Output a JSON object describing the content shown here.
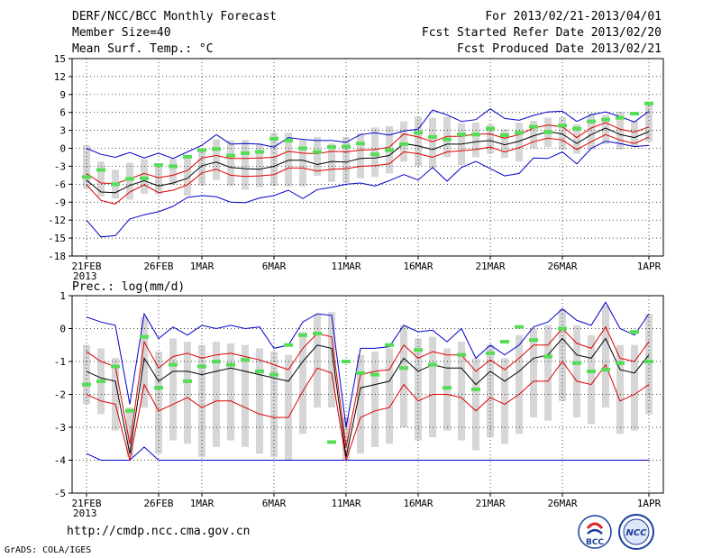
{
  "header": {
    "title": "DERF/NCC/BCC Monthly Forecast",
    "member_size": "Member Size=40",
    "variable": "Mean Surf. Temp.: °C",
    "period": "For 2013/02/21-2013/04/01",
    "fcst_started": "Fcst Started Refer Date 2013/02/20",
    "fcst_produced": "Fcst Produced Date 2013/02/21"
  },
  "footer": {
    "url": "http://cmdp.ncc.cma.gov.cn",
    "credit": "GrADS: COLA/IGES",
    "logo_left_text": "BCC",
    "logo_right_text": "NCC"
  },
  "colors": {
    "max_min": "#0000cc",
    "spread": "#dd0000",
    "mean": "#000000",
    "marker": "#55dd55",
    "box": "#d6d6d6"
  },
  "chart_data": [
    {
      "type": "box-ensemble",
      "title": "Mean Surf. Temp.: °C",
      "xlabel": "",
      "ylabel": "",
      "ylim": [
        -18,
        15
      ],
      "yticks": [
        "15",
        "12",
        "9",
        "6",
        "3",
        "0",
        "-3",
        "-6",
        "-9",
        "-12",
        "-15",
        "-18"
      ],
      "xticks": [
        "21FEB",
        "26FEB",
        "1MAR",
        "6MAR",
        "11MAR",
        "16MAR",
        "21MAR",
        "26MAR",
        "1APR"
      ],
      "xtick_day_index": [
        0,
        5,
        8,
        13,
        18,
        23,
        28,
        33,
        39
      ],
      "year_label": "2013",
      "days": 40,
      "series": {
        "max": [
          0.0,
          -1.0,
          -1.5,
          -0.7,
          -1.6,
          -0.8,
          -1.7,
          -0.6,
          0.5,
          2.3,
          0.7,
          0.8,
          0.7,
          0.2,
          1.8,
          1.5,
          1.3,
          1.3,
          1.0,
          2.3,
          2.6,
          2.2,
          2.9,
          3.2,
          6.4,
          5.6,
          4.5,
          4.8,
          6.6,
          5.0,
          4.7,
          5.5,
          6.1,
          6.2,
          4.5,
          5.6,
          6.1,
          5.3,
          4.4,
          6.2
        ],
        "p75": [
          -4.2,
          -5.8,
          -5.9,
          -5.1,
          -4.2,
          -4.9,
          -4.5,
          -3.7,
          -1.6,
          -1.2,
          -1.7,
          -1.7,
          -1.6,
          -1.5,
          -0.5,
          -0.8,
          -0.9,
          -0.5,
          -0.6,
          -0.3,
          -0.2,
          0.2,
          2.4,
          1.9,
          1.1,
          2.0,
          2.0,
          2.4,
          2.4,
          1.7,
          2.3,
          3.4,
          3.9,
          3.6,
          1.8,
          3.4,
          4.3,
          3.2,
          2.7,
          3.6
        ],
        "mean": [
          -5.3,
          -7.3,
          -7.4,
          -6.2,
          -5.4,
          -6.3,
          -5.8,
          -5.0,
          -2.9,
          -2.3,
          -3.2,
          -3.4,
          -3.5,
          -3.0,
          -2.0,
          -2.0,
          -2.7,
          -2.2,
          -2.3,
          -1.7,
          -1.6,
          -1.2,
          0.8,
          0.4,
          -0.2,
          0.7,
          0.7,
          1.1,
          1.3,
          0.6,
          1.2,
          2.1,
          2.8,
          2.4,
          0.8,
          2.3,
          3.4,
          2.3,
          1.8,
          2.8
        ],
        "p25": [
          -6.1,
          -8.7,
          -9.3,
          -7.3,
          -6.1,
          -7.4,
          -7.0,
          -6.1,
          -4.1,
          -3.5,
          -4.5,
          -4.7,
          -4.6,
          -4.4,
          -3.3,
          -3.3,
          -3.8,
          -3.5,
          -3.4,
          -3.0,
          -2.9,
          -2.6,
          -0.6,
          -0.9,
          -1.5,
          -0.6,
          -0.4,
          -0.2,
          0.2,
          -0.6,
          0.1,
          1.1,
          1.7,
          1.4,
          -0.2,
          1.1,
          2.3,
          1.4,
          0.8,
          1.9
        ],
        "min": [
          -12.0,
          -14.8,
          -14.6,
          -11.8,
          -11.1,
          -10.6,
          -9.7,
          -8.2,
          -7.9,
          -8.1,
          -9.0,
          -9.1,
          -8.3,
          -7.9,
          -7.0,
          -8.4,
          -6.9,
          -6.5,
          -6.0,
          -5.8,
          -6.3,
          -5.4,
          -4.4,
          -5.3,
          -3.2,
          -5.5,
          -3.2,
          -2.2,
          -3.4,
          -4.6,
          -4.2,
          -1.6,
          -1.7,
          -0.6,
          -2.6,
          0.0,
          1.2,
          0.8,
          0.3,
          0.5
        ],
        "obs": [
          -4.8,
          -3.6,
          -6.0,
          -5.1,
          -5.0,
          -2.8,
          -3.0,
          -1.4,
          -0.3,
          -0.1,
          -1.2,
          -0.8,
          -0.6,
          1.6,
          1.3,
          0.0,
          -0.6,
          0.2,
          0.3,
          0.8,
          -1.0,
          -0.3,
          0.7,
          2.6,
          1.9,
          1.5,
          2.3,
          2.3,
          3.3,
          2.2,
          2.6,
          3.6,
          2.7,
          3.8,
          3.3,
          4.5,
          4.8,
          5.1,
          5.8,
          7.5
        ]
      },
      "box_top": [
        0.5,
        -2.2,
        -3.6,
        -2.4,
        -1.8,
        -3.0,
        -1.8,
        -1.5,
        -0.4,
        1.5,
        1.3,
        1.4,
        0.8,
        2.6,
        2.6,
        1.4,
        1.9,
        0.8,
        1.9,
        2.5,
        3.5,
        3.7,
        4.5,
        5.3,
        5.1,
        5.3,
        4.2,
        4.3,
        4.0,
        3.2,
        4.3,
        4.6,
        5.1,
        5.2,
        4.0,
        5.9,
        5.6,
        6.1,
        4.6,
        7.5
      ],
      "box_bottom": [
        -6.7,
        -8.1,
        -8.4,
        -8.6,
        -7.6,
        -7.7,
        -6.1,
        -7.9,
        -6.2,
        -5.3,
        -6.3,
        -6.9,
        -6.5,
        -6.3,
        -6.4,
        -6.4,
        -4.6,
        -5.6,
        -5.8,
        -5.0,
        -4.8,
        -4.2,
        -2.2,
        -3.0,
        -3.3,
        -1.5,
        -2.8,
        -1.5,
        -0.9,
        -1.6,
        -2.2,
        0.0,
        0.2,
        -0.2,
        -0.9,
        -0.2,
        0.7,
        -0.2,
        0.2,
        1.1
      ]
    },
    {
      "type": "box-ensemble",
      "title": "Prec.: log(mm/d)",
      "xlabel": "",
      "ylabel": "",
      "ylim": [
        -5,
        1
      ],
      "yticks": [
        "1",
        "0",
        "-1",
        "-2",
        "-3",
        "-4",
        "-5"
      ],
      "xticks": [
        "21FEB",
        "26FEB",
        "1MAR",
        "6MAR",
        "11MAR",
        "16MAR",
        "21MAR",
        "26MAR",
        "1APR"
      ],
      "xtick_day_index": [
        0,
        5,
        8,
        13,
        18,
        23,
        28,
        33,
        39
      ],
      "year_label": "2013",
      "days": 40,
      "series": {
        "max": [
          0.35,
          0.2,
          0.1,
          -2.3,
          0.45,
          -0.3,
          0.05,
          -0.2,
          0.1,
          0.0,
          0.1,
          0.0,
          0.05,
          -0.6,
          -0.5,
          0.2,
          0.45,
          0.4,
          -3.0,
          -0.6,
          -0.6,
          -0.55,
          0.1,
          -0.1,
          -0.05,
          -0.4,
          0.0,
          -0.9,
          -0.5,
          -0.8,
          -0.5,
          0.05,
          0.2,
          0.6,
          0.25,
          0.1,
          0.8,
          0.0,
          -0.2,
          0.45
        ],
        "p75": [
          -0.7,
          -1.0,
          -1.15,
          -3.5,
          -0.4,
          -1.2,
          -0.85,
          -0.75,
          -0.9,
          -0.8,
          -0.75,
          -0.85,
          -0.95,
          -1.1,
          -1.25,
          -0.6,
          -0.15,
          -0.25,
          -3.6,
          -1.4,
          -1.3,
          -1.25,
          -0.5,
          -0.9,
          -0.7,
          -0.8,
          -0.8,
          -1.3,
          -0.95,
          -1.25,
          -0.9,
          -0.5,
          -0.5,
          0.0,
          -0.45,
          -0.6,
          0.05,
          -0.9,
          -1.0,
          -0.4
        ],
        "mean": [
          -1.3,
          -1.5,
          -1.6,
          -3.8,
          -0.9,
          -1.6,
          -1.3,
          -1.3,
          -1.4,
          -1.3,
          -1.2,
          -1.3,
          -1.4,
          -1.5,
          -1.6,
          -1.0,
          -0.5,
          -0.6,
          -3.9,
          -1.8,
          -1.7,
          -1.6,
          -0.9,
          -1.3,
          -1.1,
          -1.2,
          -1.2,
          -1.7,
          -1.3,
          -1.6,
          -1.3,
          -0.9,
          -0.8,
          -0.3,
          -0.8,
          -0.9,
          -0.3,
          -1.25,
          -1.35,
          -0.8
        ],
        "p25": [
          -2.0,
          -2.2,
          -2.3,
          -4.0,
          -1.7,
          -2.5,
          -2.3,
          -2.1,
          -2.4,
          -2.2,
          -2.2,
          -2.4,
          -2.6,
          -2.7,
          -2.7,
          -1.9,
          -1.2,
          -1.35,
          -4.0,
          -2.7,
          -2.5,
          -2.4,
          -1.7,
          -2.2,
          -2.0,
          -2.0,
          -2.1,
          -2.5,
          -2.1,
          -2.3,
          -2.0,
          -1.6,
          -1.6,
          -1.0,
          -1.6,
          -1.7,
          -1.1,
          -2.2,
          -2.0,
          -1.7
        ],
        "min": [
          -3.8,
          -4.0,
          -4.0,
          -4.0,
          -3.6,
          -4.0,
          -4.0,
          -4.0,
          -4.0,
          -4.0,
          -4.0,
          -4.0,
          -4.0,
          -4.0,
          -4.0,
          -4.0,
          -4.0,
          -4.0,
          -4.0,
          -4.0,
          -4.0,
          -4.0,
          -4.0,
          -4.0,
          -4.0,
          -4.0,
          -4.0,
          -4.0,
          -4.0,
          -4.0,
          -4.0,
          -4.0,
          -4.0,
          -4.0,
          -4.0,
          -4.0,
          -4.0,
          -4.0,
          -4.0,
          -4.0
        ],
        "obs": [
          -1.7,
          -1.6,
          -1.15,
          -2.5,
          -0.25,
          -1.8,
          -1.1,
          -1.6,
          -1.15,
          -1.0,
          -1.1,
          -0.95,
          -1.3,
          -1.4,
          -0.5,
          -0.2,
          -0.15,
          -3.45,
          -1.0,
          -1.35,
          -1.4,
          -0.5,
          -1.2,
          -0.65,
          -1.1,
          -1.8,
          -0.8,
          -1.85,
          -0.75,
          -0.4,
          0.05,
          -0.35,
          -0.85,
          0.0,
          -1.05,
          -1.3,
          -1.25,
          -1.05,
          -0.1,
          -1.0
        ]
      },
      "box_top": [
        -0.5,
        -0.6,
        -0.9,
        -2.4,
        0.35,
        -0.7,
        -0.3,
        -0.4,
        -0.5,
        -0.4,
        -0.45,
        -0.5,
        -0.6,
        -0.7,
        -0.8,
        -0.1,
        0.45,
        0.5,
        -2.7,
        -0.8,
        -0.7,
        -0.6,
        0.1,
        -0.3,
        -0.25,
        -0.6,
        -0.4,
        -0.9,
        -0.5,
        -0.9,
        -0.2,
        0.0,
        0.1,
        0.6,
        0.1,
        -0.2,
        0.7,
        -0.5,
        -0.5,
        0.45
      ],
      "box_bottom": [
        -2.3,
        -2.6,
        -3.1,
        -3.9,
        -2.4,
        -3.8,
        -3.4,
        -3.5,
        -3.9,
        -3.6,
        -3.4,
        -3.6,
        -3.8,
        -3.9,
        -4.0,
        -3.2,
        -2.4,
        -2.4,
        -4.0,
        -3.8,
        -3.6,
        -3.5,
        -3.0,
        -3.4,
        -3.3,
        -3.1,
        -3.4,
        -3.7,
        -3.3,
        -3.5,
        -3.2,
        -2.7,
        -2.8,
        -2.2,
        -2.7,
        -2.9,
        -2.4,
        -3.2,
        -3.1,
        -2.6
      ]
    }
  ]
}
